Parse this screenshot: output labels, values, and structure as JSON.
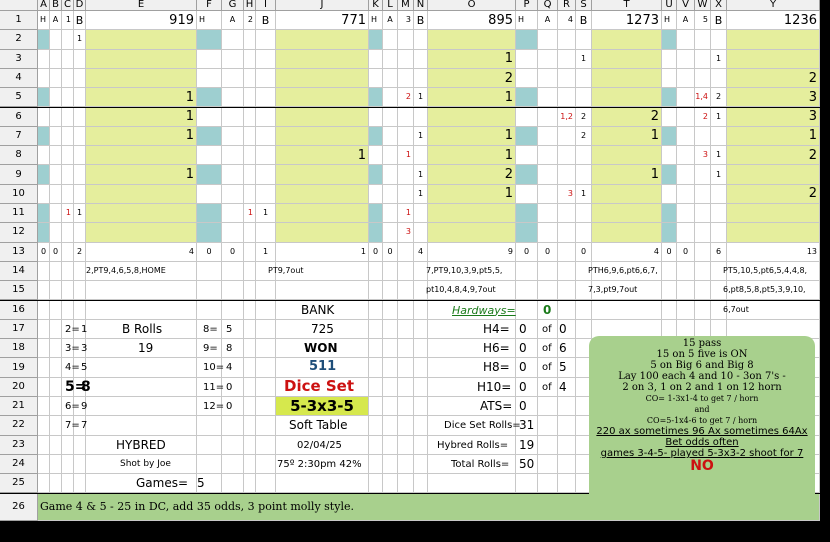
{
  "columns": [
    "A",
    "B",
    "C",
    "D",
    "E",
    "F",
    "G",
    "H",
    "I",
    "J",
    "K",
    "L",
    "M",
    "N",
    "O",
    "P",
    "Q",
    "R",
    "S",
    "T",
    "U",
    "V",
    "W",
    "X",
    "Y"
  ],
  "rows": [
    "1",
    "2",
    "3",
    "4",
    "5",
    "6",
    "7",
    "8",
    "9",
    "10",
    "11",
    "12",
    "13",
    "14",
    "15",
    "16",
    "17",
    "18",
    "19",
    "20",
    "21",
    "22",
    "23",
    "24",
    "25",
    "26"
  ],
  "games": [
    {
      "h": "H",
      "a": "A",
      "num": "1",
      "b": "B",
      "total": "919",
      "row2": "1",
      "values": [
        "",
        "",
        "1",
        "1",
        "1",
        "",
        "1",
        "",
        "",
        "",
        "",
        ""
      ],
      "marks": [
        "",
        "",
        "",
        "",
        "",
        "",
        "",
        "",
        "1",
        "",
        "",
        ""
      ],
      "bflags": [
        "",
        "",
        "",
        "",
        "",
        "",
        "",
        "",
        "1",
        "",
        "",
        ""
      ],
      "sum_h": "0",
      "sum_a": "0",
      "sum_b": "2",
      "sum_total": "4",
      "notes": [
        "2,PT9,4,6,5,8,HOME",
        "",
        ""
      ]
    },
    {
      "h": "H",
      "a": "A",
      "num": "2",
      "b": "B",
      "total": "771",
      "row2": "",
      "values": [
        "",
        "",
        "",
        "",
        "",
        "1",
        "",
        "",
        "",
        "",
        "",
        ""
      ],
      "marks": [
        "",
        "",
        "",
        "",
        "",
        "",
        "",
        "",
        "1",
        "",
        "",
        ""
      ],
      "bflags": [
        "",
        "",
        "",
        "",
        "",
        "",
        "",
        "",
        "1",
        "",
        "",
        ""
      ],
      "sum_h": "0",
      "sum_a": "0",
      "sum_b": "1",
      "sum_total": "1",
      "notes": [
        "PT9,7out",
        "",
        ""
      ]
    },
    {
      "h": "H",
      "a": "A",
      "num": "3",
      "b": "B",
      "total": "895",
      "row2": "",
      "values": [
        "1",
        "2",
        "1",
        "",
        "1",
        "1",
        "2",
        "1",
        "",
        "",
        "",
        ""
      ],
      "marks": [
        "",
        "",
        "2",
        "",
        "",
        "1",
        "",
        "",
        "1",
        "3",
        "",
        ""
      ],
      "bflags": [
        "",
        "",
        "1",
        "",
        "1",
        "",
        "1",
        "1",
        "",
        "",
        "",
        ""
      ],
      "sum_h": "0",
      "sum_a": "0",
      "sum_b": "4",
      "sum_total": "9",
      "notes": [
        "7,PT9,10,3,9,pt5,5,",
        "pt10,4,8,4,9,7out",
        ""
      ]
    },
    {
      "h": "H",
      "a": "A",
      "num": "4",
      "b": "B",
      "total": "1273",
      "row2": "",
      "values": [
        "",
        "",
        "",
        "2",
        "1",
        "",
        "1",
        "",
        "",
        "",
        "",
        ""
      ],
      "marks": [
        "",
        "",
        "",
        "1,2",
        "",
        "",
        "",
        "3",
        "",
        "",
        "",
        ""
      ],
      "bflags": [
        "1",
        "",
        "",
        "2",
        "2",
        "",
        "",
        "1",
        "",
        "",
        "",
        ""
      ],
      "sum_h": "0",
      "sum_a": "0",
      "sum_b": "0",
      "sum_total": "4",
      "notes": [
        "PTH6,9,6,pt6,6,7,",
        "7,3,pt9,7out",
        ""
      ]
    },
    {
      "h": "H",
      "a": "A",
      "num": "5",
      "b": "B",
      "total": "1236",
      "row2": "",
      "values": [
        "",
        "2",
        "3",
        "3",
        "1",
        "2",
        "",
        "2",
        "",
        "",
        "",
        ""
      ],
      "marks": [
        "",
        "",
        "1,4",
        "2",
        "",
        "3",
        "",
        "",
        "",
        "",
        "",
        ""
      ],
      "bflags": [
        "1",
        "",
        "2",
        "1",
        "",
        "1",
        "1",
        "",
        "",
        "",
        "",
        ""
      ],
      "sum_h": "0",
      "sum_a": "0",
      "sum_b": "6",
      "sum_total": "13",
      "notes": [
        "PT5,10,5,pt6,5,4,4,8,",
        "6,pt8,5,8,pt5,3,9,10,",
        "6,7out"
      ]
    }
  ],
  "field_nums": {
    "r17": "2=",
    "r17v": "1",
    "r18": "3=",
    "r18v": "3",
    "r19": "4=",
    "r19v": "5",
    "r20": "5=",
    "r20v": "8",
    "r21": "6=",
    "r21v": "9",
    "r22": "7=",
    "r22v": "7"
  },
  "field_nums2": {
    "r17": "8=",
    "r17v": "5",
    "r18": "9=",
    "r18v": "8",
    "r19": "10=",
    "r19v": "4",
    "r20": "11=",
    "r20v": "0",
    "r21": "12=",
    "r21v": "0"
  },
  "brolls": {
    "label": "B Rolls",
    "value": "19"
  },
  "hybred": {
    "label": "HYBRED",
    "shot": "Shot by Joe",
    "games_label": "Games=",
    "games_value": "5"
  },
  "bank": {
    "label": "BANK",
    "value": "725",
    "won_label": "WON",
    "won_value": "511",
    "dice_set_label": "Dice Set",
    "dice_set_value": "5-3x3-5",
    "table": "Soft Table",
    "date": "02/04/25",
    "weather": "75º 2:30pm 42%"
  },
  "hardways": {
    "label": "Hardways=",
    "value": "0",
    "rows": [
      {
        "label": "H4=",
        "value": "0",
        "of": "of",
        "total": "0"
      },
      {
        "label": "H6=",
        "value": "0",
        "of": "of",
        "total": "6"
      },
      {
        "label": "H8=",
        "value": "0",
        "of": "of",
        "total": "5"
      },
      {
        "label": "H10=",
        "value": "0",
        "of": "of",
        "total": "4"
      }
    ]
  },
  "ats": {
    "label": "ATS=",
    "value": "0"
  },
  "rolls": [
    {
      "label": "Dice Set Rolls=",
      "value": "31"
    },
    {
      "label": "Hybred Rolls=",
      "value": "19"
    },
    {
      "label": "Total Rolls=",
      "value": "50"
    }
  ],
  "note_box": {
    "lines": [
      "15 pass",
      "15 on 5 five is ON",
      "5 on Big 6 and Big 8",
      "Lay 100 each 4 and 10 - 3on 7's -",
      "2 on 3, 1 on 2 and 1 on 12 horn",
      "CO= 1-3x1-4 to get 7 / horn",
      "and",
      "CO=5-1x4-6 to get 7 / horn"
    ],
    "underlined": [
      "220 ax sometimes 96 Ax sometimes 64Ax",
      "Bet odds often",
      "games 3-4-5- played 5-3x3-2 shoot for 7"
    ],
    "verdict": "NO"
  },
  "footer_note": "Game 4 & 5 -  25 in DC, add  35 odds, 3 point molly style."
}
